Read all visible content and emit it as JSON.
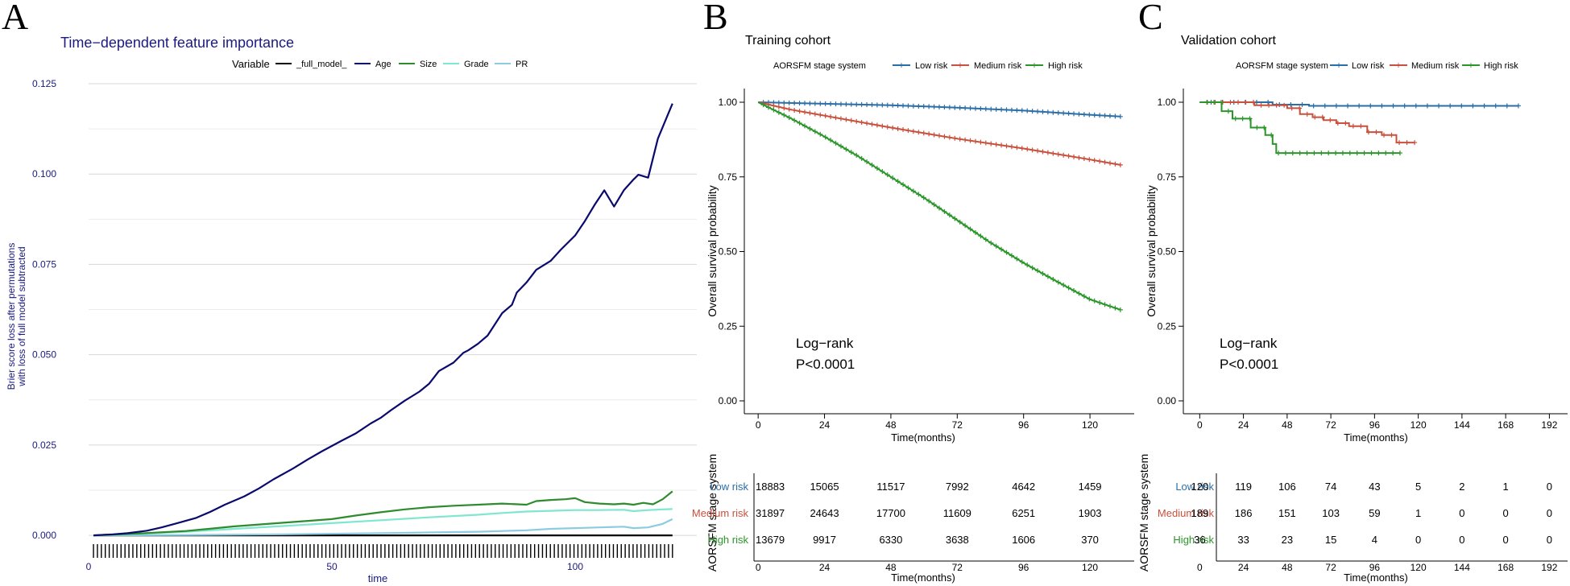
{
  "panel_labels": {
    "a": "A",
    "b": "B",
    "c": "C"
  },
  "colors": {
    "navy": "#1a1a80",
    "age": "#0a0a6e",
    "size": "#2e8b2e",
    "grade": "#7fe6cf",
    "pr": "#8ccce0",
    "low": "#2a6ea8",
    "medium": "#c8503c",
    "high": "#2a962a",
    "grid": "#dcdcdc"
  },
  "chart_data": [
    {
      "panel": "A",
      "type": "line",
      "title": "Time−dependent feature importance",
      "legend_title": "Variable",
      "xlabel": "time",
      "ylabel_line1": "Brier score loss after permutations",
      "ylabel_line2": "with loss of full model subtracted",
      "xlim": [
        0,
        125
      ],
      "ylim": [
        -0.0022,
        0.127
      ],
      "xticks": [
        0,
        50,
        100
      ],
      "xtick_labels": [
        "0",
        "50",
        "100"
      ],
      "yticks": [
        0,
        0.025,
        0.05,
        0.075,
        0.1,
        0.125
      ],
      "ytick_labels": [
        "0.000",
        "0.025",
        "0.050",
        "0.075",
        "0.100",
        "0.125"
      ],
      "rug_start": 1,
      "rug_end": 120,
      "rug_count": 148,
      "series": [
        {
          "name": "_full_model_",
          "key": "full",
          "color": "#000000",
          "x": [
            1,
            120
          ],
          "y": [
            0,
            0
          ]
        },
        {
          "name": "Age",
          "key": "age",
          "color": "#0a0a6e",
          "x": [
            1,
            5,
            8,
            12,
            15,
            18,
            22,
            25,
            28,
            32,
            35,
            38,
            42,
            45,
            48,
            52,
            55,
            58,
            60,
            62,
            65,
            68,
            70,
            72,
            75,
            77,
            78,
            80,
            82,
            85,
            87,
            88,
            90,
            92,
            95,
            97,
            100,
            102,
            104,
            106,
            108,
            110,
            112,
            113,
            115,
            117,
            120
          ],
          "y": [
            0,
            0.0003,
            0.0006,
            0.0013,
            0.0022,
            0.0033,
            0.0048,
            0.0065,
            0.0085,
            0.0108,
            0.013,
            0.0155,
            0.0185,
            0.021,
            0.0233,
            0.0262,
            0.0283,
            0.031,
            0.0325,
            0.0345,
            0.0373,
            0.0398,
            0.042,
            0.0455,
            0.0478,
            0.0505,
            0.0512,
            0.053,
            0.0553,
            0.0615,
            0.0638,
            0.0672,
            0.07,
            0.0735,
            0.076,
            0.079,
            0.083,
            0.087,
            0.0915,
            0.0955,
            0.091,
            0.0955,
            0.0985,
            0.0998,
            0.099,
            0.1098,
            0.1195
          ]
        },
        {
          "name": "Size",
          "key": "size",
          "color": "#2e8b2e",
          "x": [
            1,
            10,
            20,
            30,
            40,
            50,
            55,
            60,
            65,
            70,
            75,
            80,
            85,
            90,
            92,
            95,
            98,
            100,
            102,
            105,
            108,
            110,
            112,
            114,
            116,
            118,
            120
          ],
          "y": [
            0,
            0.0005,
            0.0012,
            0.0025,
            0.0035,
            0.0045,
            0.0055,
            0.0064,
            0.0072,
            0.0078,
            0.0082,
            0.0085,
            0.0088,
            0.0085,
            0.0095,
            0.0098,
            0.01,
            0.0103,
            0.0092,
            0.0088,
            0.0086,
            0.0088,
            0.0085,
            0.009,
            0.0086,
            0.01,
            0.0122
          ]
        },
        {
          "name": "Grade",
          "key": "grade",
          "color": "#7fe6cf",
          "x": [
            1,
            10,
            20,
            30,
            40,
            50,
            60,
            70,
            80,
            85,
            90,
            95,
            100,
            105,
            110,
            112,
            115,
            118,
            120
          ],
          "y": [
            0,
            0.0004,
            0.001,
            0.0018,
            0.0026,
            0.0034,
            0.0042,
            0.005,
            0.0057,
            0.0062,
            0.0066,
            0.0068,
            0.007,
            0.007,
            0.0071,
            0.0067,
            0.007,
            0.0072,
            0.0073
          ]
        },
        {
          "name": "PR",
          "key": "pr",
          "color": "#8ccce0",
          "x": [
            1,
            20,
            40,
            60,
            80,
            90,
            95,
            100,
            105,
            110,
            112,
            115,
            118,
            120
          ],
          "y": [
            0,
            0.0001,
            0.0003,
            0.0006,
            0.001,
            0.0014,
            0.0018,
            0.002,
            0.0022,
            0.0024,
            0.002,
            0.0022,
            0.0032,
            0.0045
          ]
        }
      ]
    },
    {
      "panel": "B",
      "type": "line",
      "title": "Training cohort",
      "legend_title": "AORSFM stage system",
      "xlabel": "Time(months)",
      "ylabel": "Overall survival probability",
      "xlim": [
        -5,
        136
      ],
      "ylim": [
        -0.04,
        1.07
      ],
      "xticks": [
        0,
        24,
        48,
        72,
        96,
        120
      ],
      "xtick_labels": [
        "0",
        "24",
        "48",
        "72",
        "96",
        "120"
      ],
      "yticks": [
        0,
        0.25,
        0.5,
        0.75,
        1.0
      ],
      "ytick_labels": [
        "0.00",
        "0.25",
        "0.50",
        "0.75",
        "1.00"
      ],
      "annotation_line1": "Log−rank",
      "annotation_line2": "P<0.0001",
      "series": [
        {
          "name": "Low risk",
          "key": "low",
          "color": "#2a6ea8",
          "x": [
            0,
            24,
            48,
            72,
            96,
            120,
            131
          ],
          "y": [
            1.0,
            0.995,
            0.99,
            0.982,
            0.972,
            0.958,
            0.952
          ]
        },
        {
          "name": "Medium risk",
          "key": "medium",
          "color": "#c8503c",
          "x": [
            0,
            12,
            24,
            48,
            72,
            96,
            120,
            131
          ],
          "y": [
            1.0,
            0.975,
            0.955,
            0.915,
            0.878,
            0.845,
            0.808,
            0.79
          ]
        },
        {
          "name": "High risk",
          "key": "high",
          "color": "#2a962a",
          "x": [
            0,
            12,
            24,
            36,
            48,
            60,
            72,
            84,
            96,
            108,
            120,
            131
          ],
          "y": [
            1.0,
            0.945,
            0.885,
            0.82,
            0.75,
            0.68,
            0.605,
            0.53,
            0.462,
            0.4,
            0.34,
            0.305
          ]
        }
      ],
      "risk_table": {
        "title": "AORSFM stage system",
        "xlabel": "Time(months)",
        "times": [
          "0",
          "24",
          "48",
          "72",
          "96",
          "120"
        ],
        "rows": [
          {
            "label": "Low risk",
            "key": "low",
            "values": [
              "18883",
              "15065",
              "11517",
              "7992",
              "4642",
              "1459"
            ]
          },
          {
            "label": "Medium risk",
            "key": "medium",
            "values": [
              "31897",
              "24643",
              "17700",
              "11609",
              "6251",
              "1903"
            ]
          },
          {
            "label": "High risk",
            "key": "high",
            "values": [
              "13679",
              "9917",
              "6330",
              "3638",
              "1606",
              "370"
            ]
          }
        ]
      }
    },
    {
      "panel": "C",
      "type": "line",
      "title": "Validation cohort",
      "legend_title": "AORSFM stage system",
      "xlabel": "Time(months)",
      "ylabel": "Overall survival probability",
      "xlim": [
        -9,
        202
      ],
      "ylim": [
        -0.04,
        1.07
      ],
      "xticks": [
        0,
        24,
        48,
        72,
        96,
        120,
        144,
        168,
        192
      ],
      "xtick_labels": [
        "0",
        "24",
        "48",
        "72",
        "96",
        "120",
        "144",
        "168",
        "192"
      ],
      "yticks": [
        0,
        0.25,
        0.5,
        0.75,
        1.0
      ],
      "ytick_labels": [
        "0.00",
        "0.25",
        "0.50",
        "0.75",
        "1.00"
      ],
      "annotation_line1": "Log−rank",
      "annotation_line2": "P<0.0001",
      "series": [
        {
          "name": "Low risk",
          "key": "low",
          "color": "#2a6ea8",
          "x": [
            0,
            40,
            40,
            60,
            60,
            175
          ],
          "y": [
            1.0,
            1.0,
            0.992,
            0.992,
            0.988,
            0.988
          ]
        },
        {
          "name": "Medium risk",
          "key": "medium",
          "color": "#c8503c",
          "x": [
            0,
            30,
            30,
            48,
            48,
            55,
            55,
            62,
            62,
            68,
            68,
            75,
            75,
            82,
            82,
            92,
            92,
            100,
            100,
            108,
            108,
            118
          ],
          "y": [
            1.0,
            1.0,
            0.99,
            0.99,
            0.98,
            0.98,
            0.96,
            0.96,
            0.95,
            0.95,
            0.94,
            0.94,
            0.93,
            0.93,
            0.92,
            0.92,
            0.9,
            0.9,
            0.89,
            0.89,
            0.865,
            0.865
          ]
        },
        {
          "name": "High risk",
          "key": "high",
          "color": "#2a962a",
          "x": [
            0,
            12,
            12,
            18,
            18,
            28,
            28,
            36,
            36,
            40,
            40,
            42,
            42,
            45,
            45,
            110
          ],
          "y": [
            1.0,
            1.0,
            0.97,
            0.97,
            0.945,
            0.945,
            0.915,
            0.915,
            0.89,
            0.89,
            0.86,
            0.86,
            0.83,
            0.83,
            0.83,
            0.83
          ]
        }
      ],
      "risk_table": {
        "title": "AORSFM stage system",
        "xlabel": "Time(months)",
        "times": [
          "0",
          "24",
          "48",
          "72",
          "96",
          "120",
          "144",
          "168",
          "192"
        ],
        "rows": [
          {
            "label": "Low risk",
            "key": "low",
            "values": [
              "120",
              "119",
              "106",
              "74",
              "43",
              "5",
              "2",
              "1",
              "0"
            ]
          },
          {
            "label": "Medium risk",
            "key": "medium",
            "values": [
              "189",
              "186",
              "151",
              "103",
              "59",
              "1",
              "0",
              "0",
              "0"
            ]
          },
          {
            "label": "High risk",
            "key": "high",
            "values": [
              "36",
              "33",
              "23",
              "15",
              "4",
              "0",
              "0",
              "0",
              "0"
            ]
          }
        ]
      }
    }
  ]
}
